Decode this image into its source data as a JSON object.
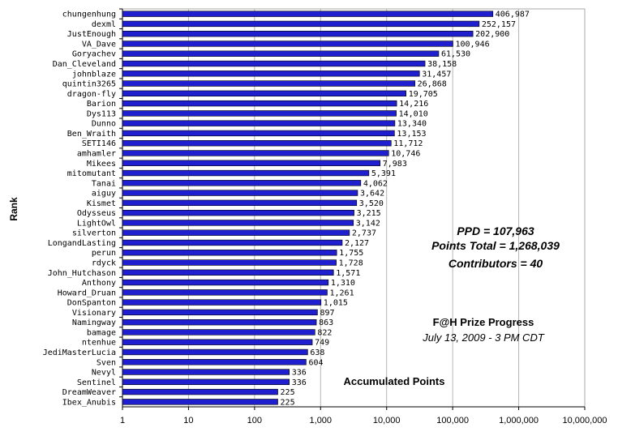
{
  "chart_data": {
    "type": "bar",
    "orientation": "horizontal",
    "x_scale": "log",
    "xlim": [
      1,
      10000000
    ],
    "x_ticks": [
      "1",
      "10",
      "100",
      "1,000",
      "10,000",
      "100,000",
      "1,000,000",
      "10,000,000"
    ],
    "ylabel": "Rank",
    "xlabel": "Accumulated Points",
    "bar_color": "#1f1fcf",
    "grid": "vertical",
    "categories": [
      "chungenhung",
      "dexml",
      "JustEnough",
      "VA_Dave",
      "Goryachev",
      "Dan_Cleveland",
      "johnblaze",
      "quintin3265",
      "dragon-fly",
      "Barion",
      "Dys113",
      "Dunno",
      "Ben_Wraith",
      "SETI146",
      "amhamler",
      "Mikees",
      "mitomutant",
      "Tanai",
      "aiguy",
      "Kismet",
      "Odysseus",
      "LightOwl",
      "silverton",
      "LongandLasting",
      "perun",
      "rdyck",
      "John_Hutchason",
      "Anthony",
      "Howard_Druan",
      "DonSpanton",
      "Visionary",
      "Namingway",
      "bamage",
      "ntenhue",
      "JediMasterLucia",
      "Sven",
      "Nevyl",
      "Sentinel",
      "DreamWeaver",
      "Ibex_Anubis"
    ],
    "values": [
      406987,
      252157,
      202900,
      100946,
      61530,
      38158,
      31457,
      26868,
      19705,
      14216,
      14010,
      13340,
      13153,
      11712,
      10746,
      7983,
      5391,
      4062,
      3642,
      3520,
      3215,
      3142,
      2737,
      2127,
      1755,
      1728,
      1571,
      1310,
      1261,
      1015,
      897,
      863,
      822,
      749,
      638,
      604,
      336,
      336,
      225,
      225
    ],
    "value_labels": [
      "406,987",
      "252,157",
      "202,900",
      "100,946",
      "61,530",
      "38,158",
      "31,457",
      "26,868",
      "19,705",
      "14,216",
      "14,010",
      "13,340",
      "13,153",
      "11,712",
      "10,746",
      "7,983",
      "5,391",
      "4,062",
      "3,642",
      "3,520",
      "3,215",
      "3,142",
      "2,737",
      "2,127",
      "1,755",
      "1,728",
      "1,571",
      "1,310",
      "1,261",
      "1,015",
      "897",
      "863",
      "822",
      "749",
      "638",
      "604",
      "336",
      "336",
      "225",
      "225"
    ],
    "annotations": {
      "ppd": "PPD = 107,963",
      "points_total": "Points Total = 1,268,039",
      "contributors": "Contributors = 40",
      "title": "F@H Prize Progress",
      "date": "July 13, 2009 - 3 PM CDT"
    }
  }
}
